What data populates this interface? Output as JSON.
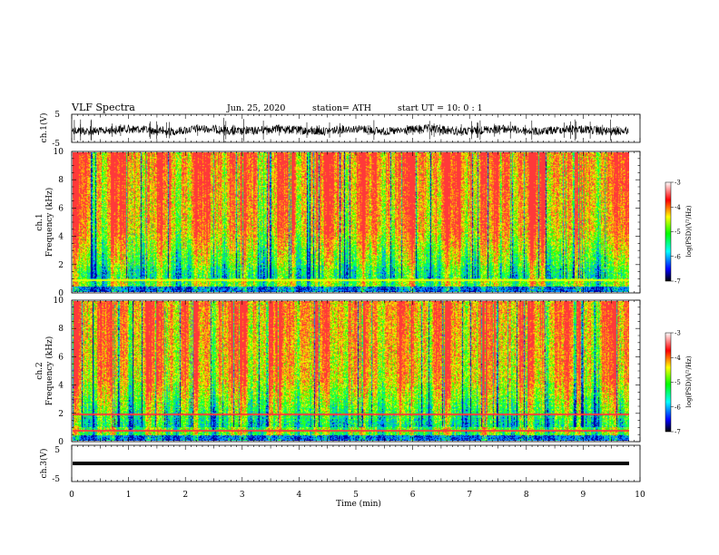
{
  "header": {
    "title": "VLF  Spectra",
    "date": "Jun. 25, 2020",
    "station": "station= ATH",
    "start": "start  UT  =   10: 0   : 1"
  },
  "chart_data": [
    {
      "type": "line",
      "panel": "ch1-waveform",
      "ylabel": "ch.1(V)",
      "ylim": [
        -5,
        5
      ],
      "xlim": [
        0,
        10
      ],
      "yticks": [
        "5",
        "-5"
      ],
      "trace_color": "#000000"
    },
    {
      "type": "heatmap",
      "panel": "ch1-spectrogram",
      "ylabel": "ch.1\nFrequency  (kHz)",
      "ylabel_ch": "ch.1",
      "ylabel_freq": "Frequency  (kHz)",
      "ylim": [
        0,
        10
      ],
      "xlim": [
        0,
        10
      ],
      "yticks": [
        "0",
        "2",
        "4",
        "6",
        "8",
        "10"
      ],
      "data_end_min": 9.8,
      "colorbar": {
        "label": "log(PSD)(V²/Hz)",
        "ticks": [
          "-3",
          "-4",
          "-5",
          "-6",
          "-7"
        ],
        "range": [
          -7,
          -3
        ]
      }
    },
    {
      "type": "heatmap",
      "panel": "ch2-spectrogram",
      "ylabel_ch": "ch.2",
      "ylabel_freq": "Frequency  (kHz)",
      "ylim": [
        0,
        10
      ],
      "xlim": [
        0,
        10
      ],
      "yticks": [
        "0",
        "2",
        "4",
        "6",
        "8",
        "10"
      ],
      "data_end_min": 9.8,
      "colorbar": {
        "label": "log(PSD)(V²/Hz)",
        "ticks": [
          "-3",
          "-4",
          "-5",
          "-6",
          "-7"
        ],
        "range": [
          -7,
          -3
        ]
      }
    },
    {
      "type": "line",
      "panel": "ch3-waveform",
      "ylabel": "ch.3(V)",
      "ylim": [
        -5,
        5
      ],
      "xlim": [
        0,
        10
      ],
      "yticks": [
        "5",
        "-5"
      ],
      "xlabel": "Time  (min)",
      "xticks": [
        "0",
        "1",
        "2",
        "3",
        "4",
        "5",
        "6",
        "7",
        "8",
        "9",
        "10"
      ],
      "trace_level_v": 0,
      "trace_color": "#000000"
    }
  ],
  "colors": {
    "colormap": [
      "#000000",
      "#0000ff",
      "#00ffff",
      "#00ff00",
      "#ffff00",
      "#ff0000",
      "#ffffff"
    ]
  }
}
